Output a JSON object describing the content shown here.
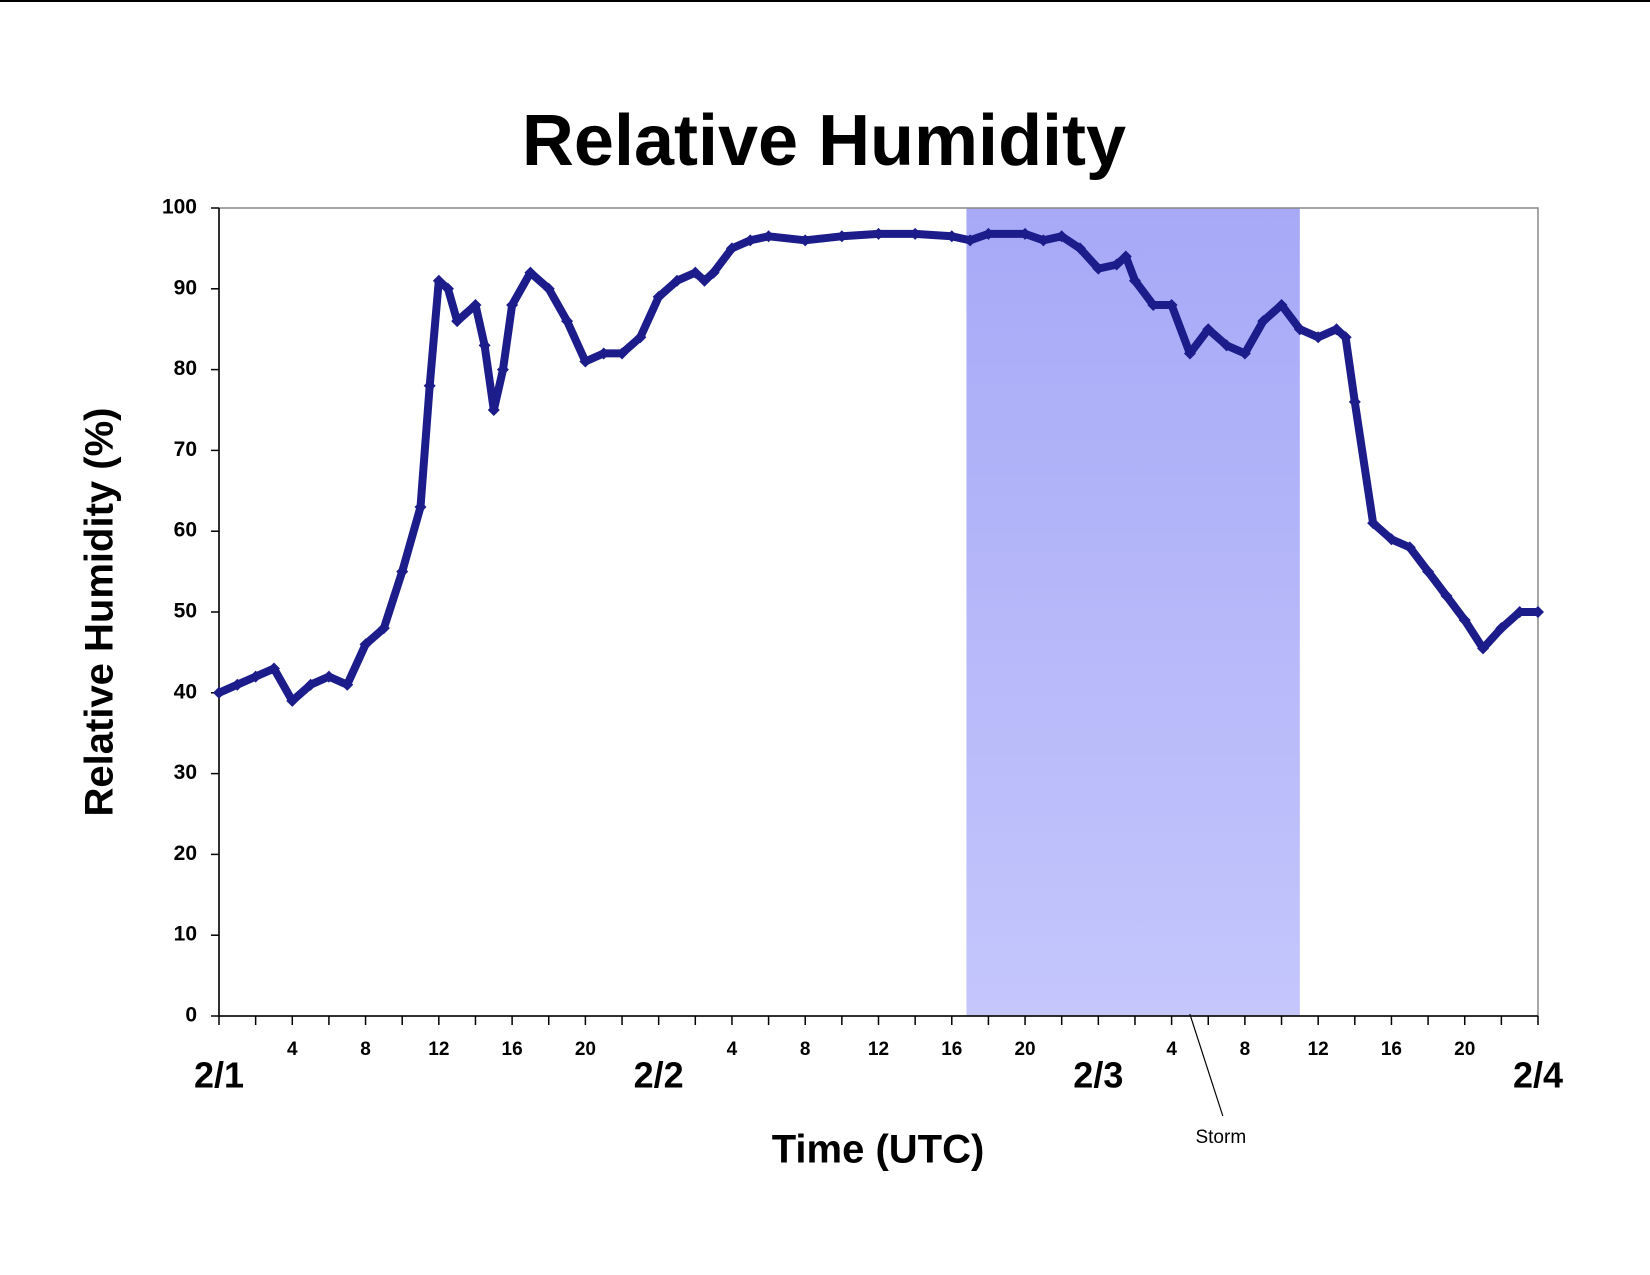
{
  "chart_data": {
    "type": "scatter",
    "title": "Relative Humidity",
    "x_label": "Time (UTC)",
    "y_label": "Relative Humidity (%)",
    "series": [
      {
        "name": "Relative Humidity",
        "color": "#1c1c8a",
        "x": [
          0,
          1,
          2,
          3,
          4,
          5,
          6,
          7,
          8,
          9,
          10,
          11,
          11.5,
          12,
          12.5,
          13,
          14,
          14.5,
          15,
          15.5,
          16,
          17,
          18,
          19,
          20,
          21,
          22,
          23,
          24,
          25,
          26,
          26.5,
          27,
          28,
          29,
          30,
          32,
          34,
          36,
          38,
          40,
          41,
          42,
          44,
          45,
          46,
          47,
          48,
          49,
          49.5,
          50,
          51,
          52,
          53,
          54,
          55,
          56,
          57,
          58,
          59,
          60,
          61,
          61.5,
          62,
          63,
          64,
          65,
          66,
          67,
          68,
          69,
          70,
          71,
          72
        ],
        "values": [
          40,
          41,
          42,
          43,
          39,
          41,
          42,
          41,
          46,
          48,
          55,
          63,
          78,
          91,
          90,
          86,
          88,
          83,
          75,
          80,
          88,
          92,
          90,
          86,
          81,
          82,
          82,
          84,
          89,
          91,
          92,
          91,
          92,
          95,
          96,
          96.5,
          96,
          96.5,
          96.8,
          96.8,
          96.5,
          96,
          96.8,
          96.8,
          96,
          96.5,
          95,
          92.5,
          93,
          94,
          91,
          88,
          88,
          82,
          85,
          83,
          82,
          86,
          88,
          85,
          84,
          85,
          84,
          76,
          61,
          59,
          58,
          55,
          52,
          49,
          45.5,
          48,
          50,
          50
        ]
      }
    ],
    "xlim": [
      0,
      72
    ],
    "xticks": [
      {
        "value": 4,
        "label": "4"
      },
      {
        "value": 8,
        "label": "8"
      },
      {
        "value": 12,
        "label": "12"
      },
      {
        "value": 16,
        "label": "16"
      },
      {
        "value": 20,
        "label": "20"
      },
      {
        "value": 28,
        "label": "4"
      },
      {
        "value": 32,
        "label": "8"
      },
      {
        "value": 36,
        "label": "12"
      },
      {
        "value": 40,
        "label": "16"
      },
      {
        "value": 44,
        "label": "20"
      },
      {
        "value": 52,
        "label": "4"
      },
      {
        "value": 56,
        "label": "8"
      },
      {
        "value": 60,
        "label": "12"
      },
      {
        "value": 64,
        "label": "16"
      },
      {
        "value": 68,
        "label": "20"
      }
    ],
    "xticks_days": [
      {
        "value": 0,
        "label": "2/1"
      },
      {
        "value": 24,
        "label": "2/2"
      },
      {
        "value": 48,
        "label": "2/3"
      },
      {
        "value": 72,
        "label": "2/4"
      }
    ],
    "xminor_ticks": [
      0,
      2,
      4,
      6,
      8,
      10,
      12,
      14,
      16,
      18,
      20,
      22,
      24,
      26,
      28,
      30,
      32,
      34,
      36,
      38,
      40,
      42,
      44,
      46,
      48,
      50,
      52,
      54,
      56,
      58,
      60,
      62,
      64,
      66,
      68,
      70,
      72
    ],
    "ylim": [
      0,
      100
    ],
    "yticks": [
      0,
      10,
      20,
      30,
      40,
      50,
      60,
      70,
      80,
      90,
      100
    ],
    "shaded_regions": [
      {
        "label": "Storm",
        "xlim": [
          40.8,
          59
        ],
        "color": "#a9abf8"
      }
    ],
    "grid": false
  }
}
